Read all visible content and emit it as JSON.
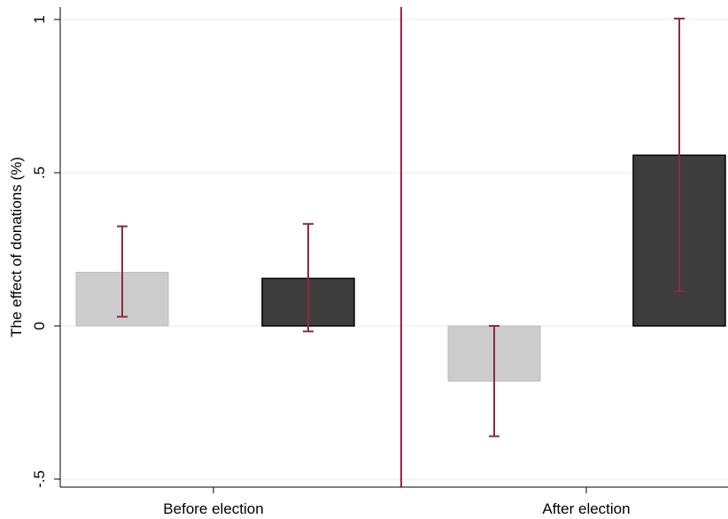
{
  "chart_data": {
    "type": "bar",
    "title": "",
    "ylabel": "The effect of donations (%)",
    "xlabel": "",
    "ylim": [
      -0.5,
      1.0
    ],
    "y_ticks": [
      {
        "value": -0.5,
        "label": "-.5"
      },
      {
        "value": 0,
        "label": "0"
      },
      {
        "value": 0.5,
        "label": ".5"
      },
      {
        "value": 1,
        "label": "1"
      }
    ],
    "grid": true,
    "legend": "none",
    "groups": [
      {
        "label": "Before election",
        "bars": [
          {
            "value": 0.175,
            "ci": [
              0.03,
              0.325
            ],
            "color": "#cccccc"
          },
          {
            "value": 0.155,
            "ci": [
              -0.018,
              0.333
            ],
            "color": "#3d3d3d"
          }
        ]
      },
      {
        "label": "After election",
        "bars": [
          {
            "value": -0.18,
            "ci": [
              -0.36,
              0.0
            ],
            "color": "#cccccc"
          },
          {
            "value": 0.557,
            "ci": [
              0.113,
              1.003
            ],
            "color": "#3d3d3d"
          }
        ]
      }
    ],
    "divider": "between-groups",
    "colors": {
      "error_bar": "#8b2c3b",
      "divider": "#b0204a",
      "axis": "#000000",
      "grid": "#e8e8e8"
    }
  }
}
